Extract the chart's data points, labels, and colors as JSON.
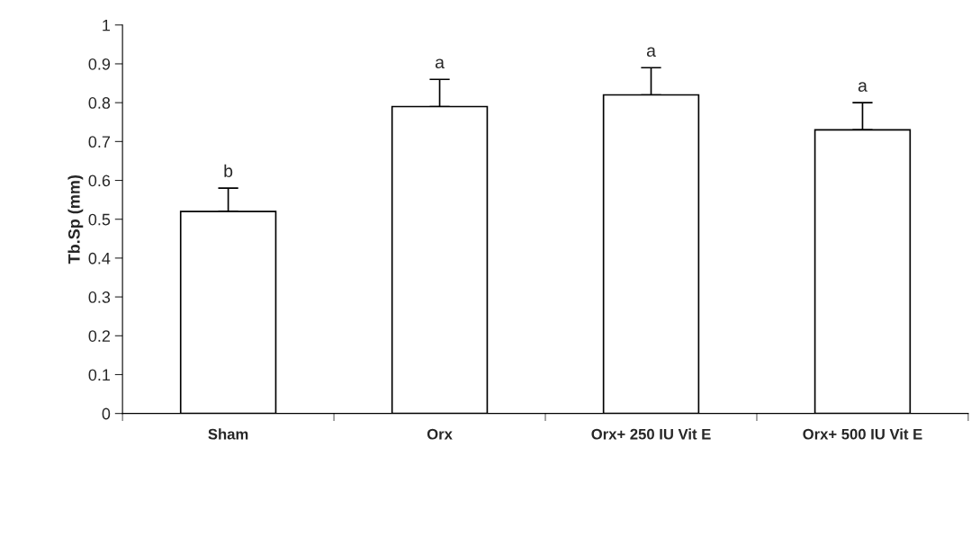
{
  "chart_data": {
    "type": "bar",
    "ylabel": "Tb.Sp (mm)",
    "categories": [
      "Sham",
      "Orx",
      "Orx+ 250 IU Vit E",
      "Orx+ 500 IU Vit E"
    ],
    "values": [
      0.52,
      0.79,
      0.82,
      0.73
    ],
    "errors": [
      [
        0.52,
        0.58
      ],
      [
        0.79,
        0.86
      ],
      [
        0.82,
        0.89
      ],
      [
        0.73,
        0.8
      ]
    ],
    "color": "#ffffff",
    "ylim": [
      0,
      1
    ],
    "yticks": [
      0,
      0.1,
      0.2,
      0.3,
      0.4,
      0.5,
      0.6,
      0.7,
      0.8,
      0.9,
      1
    ],
    "annotations": [
      {
        "text": "b",
        "x": "Sham",
        "y": 0.58
      },
      {
        "text": "a",
        "x": "Orx",
        "y": 0.86
      },
      {
        "text": "a",
        "x": "Orx+ 250 IU Vit E",
        "y": 0.89
      },
      {
        "text": "a",
        "x": "Orx+ 500 IU Vit E",
        "y": 0.8
      }
    ],
    "grid": false,
    "legend": false
  }
}
